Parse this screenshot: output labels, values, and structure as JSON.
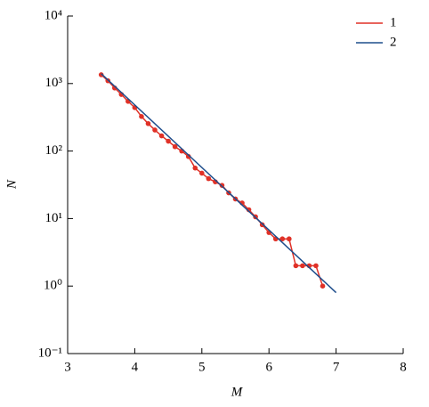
{
  "chart_data": {
    "type": "line",
    "xlabel": "M",
    "ylabel": "N",
    "log_y": true,
    "legend": "upper right",
    "xlim": [
      3,
      8
    ],
    "xticks": [
      3,
      4,
      5,
      6,
      7,
      8
    ],
    "ylim": [
      0.1,
      10000
    ],
    "yticks": [
      {
        "value": 0.1,
        "label": "10⁻¹"
      },
      {
        "value": 1,
        "label": "10⁰"
      },
      {
        "value": 10,
        "label": "10¹"
      },
      {
        "value": 100,
        "label": "10²"
      },
      {
        "value": 1000,
        "label": "10³"
      },
      {
        "value": 10000,
        "label": "10⁴"
      }
    ],
    "series": [
      {
        "name": "1",
        "color": "#e03127",
        "markers": true,
        "x": [
          3.5,
          3.6,
          3.7,
          3.8,
          3.9,
          4.0,
          4.1,
          4.2,
          4.3,
          4.4,
          4.5,
          4.6,
          4.7,
          4.8,
          4.9,
          5.0,
          5.1,
          5.2,
          5.3,
          5.4,
          5.5,
          5.6,
          5.7,
          5.8,
          5.9,
          6.0,
          6.1,
          6.2,
          6.3,
          6.4,
          6.5,
          6.6,
          6.7,
          6.8
        ],
        "values": [
          1350,
          1100,
          860,
          690,
          545,
          440,
          325,
          255,
          205,
          168,
          140,
          116,
          100,
          83,
          56,
          47,
          39,
          35,
          31,
          24,
          19.5,
          17,
          13.5,
          10.6,
          8.1,
          6.2,
          5,
          5,
          5,
          2,
          2,
          2,
          2,
          1
        ]
      },
      {
        "name": "2",
        "color": "#1f4e8c",
        "markers": false,
        "x": [
          3.5,
          7.0
        ],
        "values": [
          1400,
          0.8
        ]
      }
    ]
  }
}
